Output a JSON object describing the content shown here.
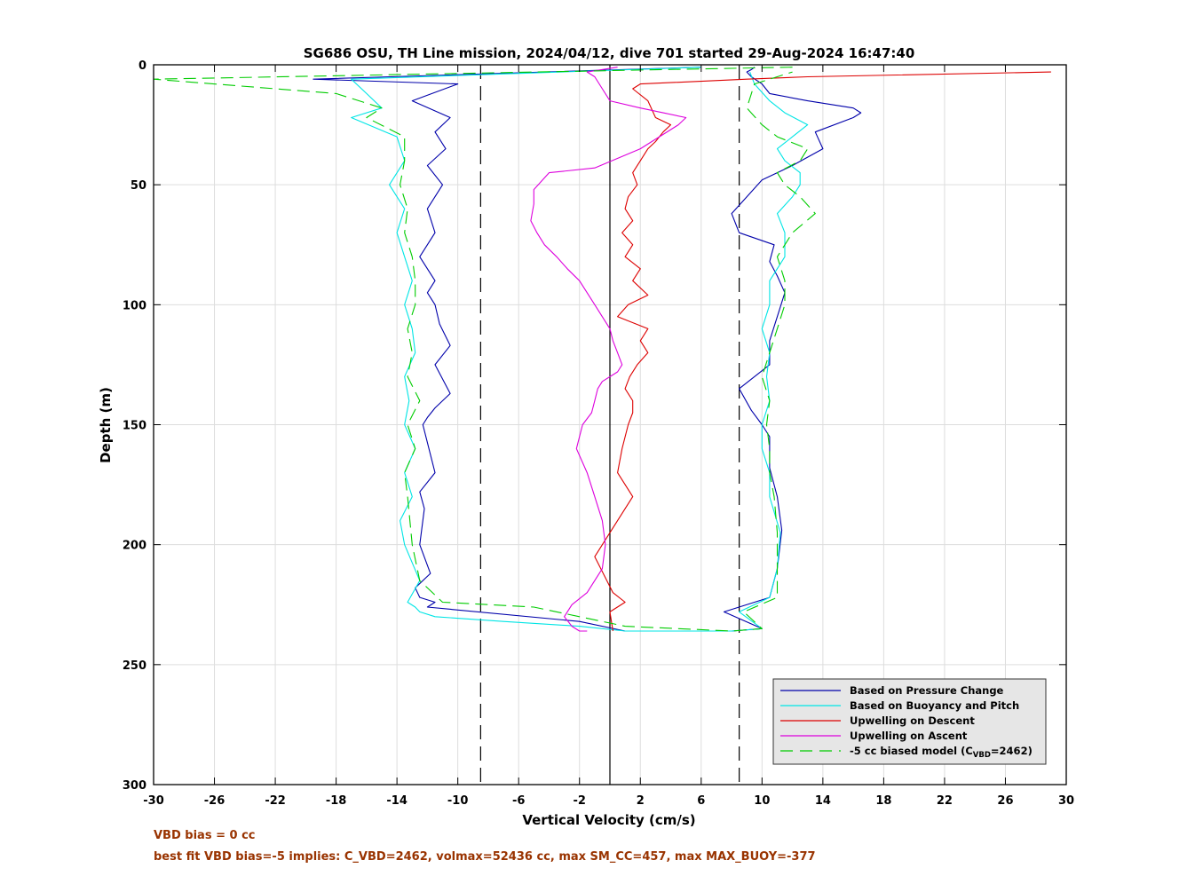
{
  "chart_data": {
    "type": "line",
    "title": "SG686 OSU, TH Line mission, 2024/04/12, dive 701 started 29-Aug-2024 16:47:40",
    "xlabel": "Vertical Velocity (cm/s)",
    "ylabel": "Depth (m)",
    "xlim": [
      -30,
      30
    ],
    "ylim": [
      300,
      0
    ],
    "y_reversed": true,
    "grid": true,
    "legend_position": "bottom-right",
    "x_ticks": [
      "-30",
      "-26",
      "-22",
      "-18",
      "-14",
      "-10",
      "-6",
      "-2",
      "2",
      "6",
      "10",
      "14",
      "18",
      "22",
      "26",
      "30"
    ],
    "x_tick_values": [
      -30,
      -26,
      -22,
      -18,
      -14,
      -10,
      -6,
      -2,
      2,
      6,
      10,
      14,
      18,
      22,
      26,
      30
    ],
    "y_ticks": [
      "0",
      "50",
      "100",
      "150",
      "200",
      "250",
      "300"
    ],
    "y_tick_values": [
      0,
      50,
      100,
      150,
      200,
      250,
      300
    ],
    "reference_lines": [
      {
        "x": -8.5,
        "style": "dashed",
        "color": "#000000"
      },
      {
        "x": 0,
        "style": "solid",
        "color": "#000000"
      },
      {
        "x": 8.5,
        "style": "dashed",
        "color": "#000000"
      }
    ],
    "series": [
      {
        "name": "Based on Pressure Change",
        "color": "#0000aa",
        "dash": "none",
        "x": [
          6,
          -19.5,
          -10,
          -13,
          -10.5,
          -11.5,
          -10.8,
          -12,
          -11,
          -12,
          -11.5,
          -12.5,
          -11.5,
          -12,
          -11.5,
          -11.2,
          -10.5,
          -11.5,
          -10.5,
          -11.5,
          -12,
          -12.3,
          -11.5,
          -12.5,
          -12.2,
          -12.5,
          -11.8,
          -12.8,
          -12.5,
          -11.5,
          -12,
          -2,
          1,
          8,
          10,
          7.5,
          10.5,
          11,
          11.3,
          11,
          10.5,
          10.5,
          10,
          9.3,
          8.5,
          10.5,
          10.5,
          11,
          11.5,
          11,
          10.5,
          10.8,
          8.5,
          8,
          9,
          10,
          12,
          14,
          13.5,
          16,
          16.5,
          16,
          13,
          10.5,
          10,
          9.3,
          9,
          9.3,
          9.5
        ],
        "y": [
          1,
          6,
          8,
          15,
          22,
          28,
          35,
          42,
          50,
          60,
          70,
          80,
          90,
          95,
          100,
          108,
          117,
          125,
          137,
          143,
          147,
          150,
          170,
          178,
          185,
          200,
          212,
          218,
          222,
          224,
          226,
          232,
          236,
          236,
          235,
          228,
          222,
          210,
          194,
          180,
          168,
          155,
          150,
          144,
          135,
          125,
          115,
          105,
          95,
          88,
          82,
          75,
          70,
          62,
          55,
          48,
          42,
          35,
          28,
          22,
          20,
          18,
          15,
          12,
          8,
          5,
          3,
          2,
          1
        ]
      },
      {
        "name": "Based on Buoyancy and Pitch",
        "color": "#00e5e5",
        "dash": "none",
        "x": [
          6,
          -17,
          -16,
          -15,
          -17,
          -14,
          -13.5,
          -14.5,
          -13.5,
          -14,
          -13.5,
          -13,
          -13.5,
          -13,
          -12.8,
          -13.5,
          -13.2,
          -13.5,
          -12.8,
          -13.5,
          -13,
          -13.8,
          -13.5,
          -12.5,
          -13.3,
          -12.8,
          -12.5,
          -11.5,
          -7,
          -2,
          1,
          8,
          10,
          8.5,
          10.5,
          11,
          11.2,
          10.5,
          10.5,
          10,
          10,
          10.5,
          10.3,
          10.5,
          10,
          10.5,
          10.5,
          11.5,
          11.5,
          11,
          12,
          12.5,
          12.5,
          11.5,
          11,
          12,
          13,
          11.5,
          10.5,
          9.5,
          9.2
        ],
        "y": [
          1,
          6,
          12,
          18,
          22,
          30,
          40,
          50,
          60,
          70,
          80,
          90,
          100,
          110,
          120,
          130,
          140,
          150,
          160,
          170,
          180,
          190,
          200,
          215,
          224,
          226,
          228,
          230,
          232,
          234,
          236,
          236,
          235,
          228,
          222,
          210,
          195,
          180,
          170,
          160,
          150,
          140,
          130,
          120,
          110,
          100,
          90,
          80,
          70,
          62,
          55,
          50,
          45,
          40,
          35,
          30,
          25,
          20,
          15,
          8,
          3
        ]
      },
      {
        "name": "Upwelling on Descent",
        "color": "#dd0000",
        "dash": "none",
        "x": [
          29,
          13,
          9,
          2,
          1.5,
          2.5,
          3,
          4,
          3.5,
          3,
          2.5,
          2,
          1.5,
          1.8,
          1.2,
          1,
          1.5,
          0.8,
          1.5,
          1,
          2,
          1.5,
          2.5,
          1.2,
          0.5,
          2.5,
          2,
          2.5,
          1.8,
          1.3,
          1,
          1.5,
          1.5,
          1.2,
          0.8,
          0.5,
          1.5,
          0.5,
          -1,
          0.2,
          1,
          0,
          0.2
        ],
        "y": [
          3,
          5,
          6,
          8,
          10,
          15,
          22,
          25,
          28,
          32,
          35,
          40,
          45,
          50,
          55,
          60,
          65,
          70,
          75,
          80,
          85,
          90,
          96,
          100,
          105,
          110,
          115,
          120,
          125,
          130,
          135,
          140,
          145,
          150,
          160,
          170,
          180,
          190,
          205,
          220,
          224,
          228,
          236
        ]
      },
      {
        "name": "Upwelling on Ascent",
        "color": "#dd00dd",
        "dash": "none",
        "x": [
          0.5,
          -1.5,
          -1,
          -0.5,
          0,
          2,
          3.5,
          5,
          4.5,
          2,
          -1,
          -4,
          -5,
          -5,
          -5.2,
          -4.8,
          -4.3,
          -3.5,
          -2.8,
          -2,
          -1.5,
          -1,
          -0.5,
          0,
          0.2,
          0.5,
          0.8,
          0.5,
          -0.5,
          -0.8,
          -1,
          -1.2,
          -1.8,
          -2.2,
          -1.5,
          -1,
          -0.5,
          -0.3,
          -0.5,
          -1.5,
          -2.5,
          -3,
          -2.5,
          -2,
          -1.5
        ],
        "y": [
          1,
          3,
          5,
          10,
          15,
          18,
          20,
          22,
          25,
          35,
          43,
          45,
          52,
          58,
          65,
          70,
          75,
          80,
          85,
          90,
          95,
          100,
          105,
          110,
          115,
          120,
          125,
          128,
          132,
          135,
          140,
          145,
          150,
          160,
          170,
          180,
          190,
          200,
          210,
          220,
          225,
          230,
          234,
          236,
          236
        ]
      },
      {
        "name": "-5 cc biased model (C_VBD=2462)",
        "color": "#00cc00",
        "dash": "dashed",
        "x": [
          12,
          -30,
          -18,
          -15,
          -16,
          -13.5,
          -13.5,
          -13.8,
          -13.3,
          -13.5,
          -13,
          -12.8,
          -12.8,
          -13.3,
          -13,
          -13.3,
          -12.5,
          -13.3,
          -12.8,
          -13.5,
          -13.3,
          -13,
          -12.5,
          -11,
          -5,
          -2,
          1,
          8,
          10,
          8.8,
          11,
          11,
          11,
          10.8,
          10.5,
          10.5,
          10.3,
          10.5,
          10,
          10.5,
          11,
          11.5,
          11.5,
          11,
          12,
          13.5,
          12.5,
          11.5,
          11,
          12.5,
          13,
          11,
          10,
          9,
          9.5,
          12
        ],
        "y": [
          1,
          6,
          12,
          18,
          22,
          30,
          40,
          50,
          60,
          70,
          80,
          90,
          100,
          110,
          120,
          130,
          140,
          150,
          160,
          170,
          180,
          200,
          215,
          224,
          226,
          230,
          234,
          236,
          235,
          228,
          222,
          210,
          195,
          180,
          170,
          160,
          150,
          140,
          130,
          120,
          110,
          100,
          90,
          80,
          70,
          62,
          55,
          50,
          45,
          40,
          35,
          30,
          25,
          18,
          8,
          3
        ]
      }
    ],
    "legend": [
      {
        "label": "Based on Pressure Change",
        "color": "#0000aa",
        "dash": "none"
      },
      {
        "label": "Based on Buoyancy and Pitch",
        "color": "#00e5e5",
        "dash": "none"
      },
      {
        "label": "Upwelling on Descent",
        "color": "#dd0000",
        "dash": "none"
      },
      {
        "label": "Upwelling on Ascent",
        "color": "#dd00dd",
        "dash": "none"
      },
      {
        "label": "-5 cc biased model (C",
        "sub": "VBD",
        "suffix": "=2462)",
        "color": "#00cc00",
        "dash": "dashed"
      }
    ]
  },
  "notes": {
    "vbd_bias": "VBD bias = 0 cc",
    "best_fit": "best fit VBD bias=-5 implies: C_VBD=2462, volmax=52436 cc, max SM_CC=457, max MAX_BUOY=-377"
  },
  "colors": {
    "note_text": "#993300",
    "grid": "#dddddd",
    "legend_bg": "#e6e6e6"
  }
}
